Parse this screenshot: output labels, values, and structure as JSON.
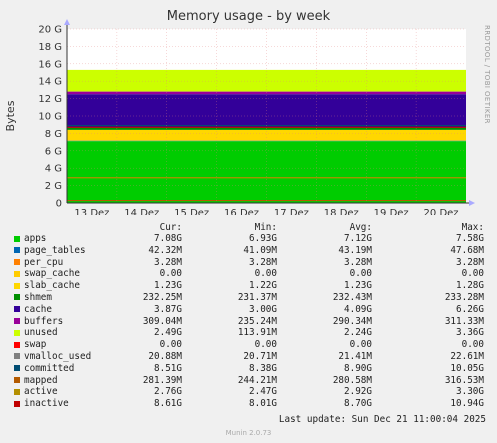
{
  "chart_data": {
    "type": "area",
    "title": "Memory usage - by week",
    "ylabel": "Bytes",
    "ylim": [
      0,
      20
    ],
    "yticks": [
      "0",
      "2 G",
      "4 G",
      "6 G",
      "8 G",
      "10 G",
      "12 G",
      "14 G",
      "16 G",
      "18 G",
      "20 G"
    ],
    "categories": [
      "13 Dez",
      "14 Dez",
      "15 Dez",
      "16 Dez",
      "17 Dez",
      "18 Dez",
      "19 Dez",
      "20 Dez"
    ],
    "stack_levels_G": {
      "apps": 7.1,
      "page_tables": 7.15,
      "slab_cache": 8.4,
      "shmem": 8.65,
      "cache": 12.5,
      "buffers": 12.8,
      "unused": 15.3
    },
    "series": [
      {
        "name": "apps",
        "color": "#00cc00",
        "cur": "7.08G",
        "min": "6.93G",
        "avg": "7.12G",
        "max": "7.58G"
      },
      {
        "name": "page_tables",
        "color": "#0066b3",
        "cur": "42.32M",
        "min": "41.09M",
        "avg": "43.19M",
        "max": "47.68M"
      },
      {
        "name": "per_cpu",
        "color": "#ff8000",
        "cur": "3.28M",
        "min": "3.28M",
        "avg": "3.28M",
        "max": "3.28M"
      },
      {
        "name": "swap_cache",
        "color": "#ffcc00",
        "cur": "0.00",
        "min": "0.00",
        "avg": "0.00",
        "max": "0.00"
      },
      {
        "name": "slab_cache",
        "color": "#ffd700",
        "cur": "1.23G",
        "min": "1.22G",
        "avg": "1.23G",
        "max": "1.28G"
      },
      {
        "name": "shmem",
        "color": "#008f00",
        "cur": "232.25M",
        "min": "231.37M",
        "avg": "232.43M",
        "max": "233.28M"
      },
      {
        "name": "cache",
        "color": "#330099",
        "cur": "3.87G",
        "min": "3.00G",
        "avg": "4.09G",
        "max": "6.26G"
      },
      {
        "name": "buffers",
        "color": "#990099",
        "cur": "309.04M",
        "min": "235.24M",
        "avg": "290.34M",
        "max": "311.33M"
      },
      {
        "name": "unused",
        "color": "#ccff00",
        "cur": "2.49G",
        "min": "113.91M",
        "avg": "2.24G",
        "max": "3.36G"
      },
      {
        "name": "swap",
        "color": "#ff0000",
        "cur": "0.00",
        "min": "0.00",
        "avg": "0.00",
        "max": "0.00"
      },
      {
        "name": "vmalloc_used",
        "color": "#808080",
        "cur": "20.88M",
        "min": "20.71M",
        "avg": "21.41M",
        "max": "22.61M"
      },
      {
        "name": "committed",
        "color": "#004d73",
        "cur": "8.51G",
        "min": "8.38G",
        "avg": "8.90G",
        "max": "10.05G"
      },
      {
        "name": "mapped",
        "color": "#b35a00",
        "cur": "281.39M",
        "min": "244.21M",
        "avg": "280.58M",
        "max": "316.53M"
      },
      {
        "name": "active",
        "color": "#b38f00",
        "cur": "2.76G",
        "min": "2.47G",
        "avg": "2.92G",
        "max": "3.30G"
      },
      {
        "name": "inactive",
        "color": "#c00000",
        "cur": "8.61G",
        "min": "8.01G",
        "avg": "8.70G",
        "max": "10.94G"
      }
    ],
    "legend_headers": {
      "cur": "Cur:",
      "min": "Min:",
      "avg": "Avg:",
      "max": "Max:"
    },
    "grid": true
  },
  "side_text": "RRDTOOL / TOBI OETIKER",
  "footer": "Last update: Sun Dec 21 11:00:04 2025",
  "munin": "Munin 2.0.73"
}
